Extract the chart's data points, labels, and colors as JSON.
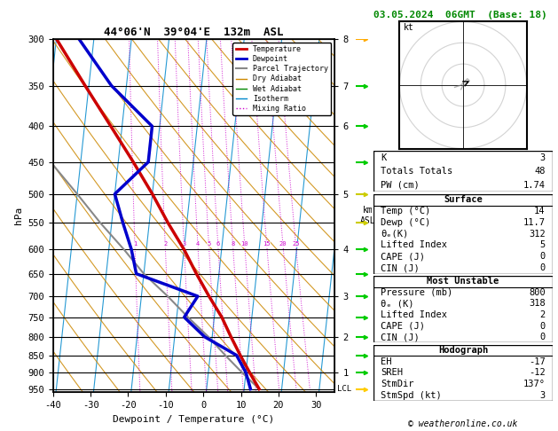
{
  "title_left": "44°06'N  39°04'E  132m  ASL",
  "title_right": "03.05.2024  06GMT  (Base: 18)",
  "xlabel": "Dewpoint / Temperature (°C)",
  "pressure_ticks": [
    300,
    350,
    400,
    450,
    500,
    550,
    600,
    650,
    700,
    750,
    800,
    850,
    900,
    950
  ],
  "xlim": [
    -40,
    35
  ],
  "p_min": 300,
  "p_max": 960,
  "km_ticks": [
    1,
    2,
    3,
    4,
    5,
    6,
    7,
    8
  ],
  "km_pressures": [
    900,
    800,
    700,
    600,
    500,
    400,
    350,
    300
  ],
  "mix_ratio_values": [
    1,
    2,
    3,
    4,
    5,
    6,
    8,
    10,
    15,
    20,
    25
  ],
  "mix_label_pressure": 590,
  "skew_slope": 20.0,
  "p0_skew": 1050.0,
  "temp_profile": {
    "pressure": [
      950,
      900,
      850,
      800,
      750,
      700,
      650,
      600,
      550,
      500,
      450,
      400,
      350,
      300
    ],
    "temp": [
      14,
      11,
      8,
      5,
      2,
      -2,
      -6,
      -10,
      -15,
      -20,
      -26,
      -33,
      -41,
      -50
    ]
  },
  "dewp_profile": {
    "pressure": [
      950,
      900,
      850,
      800,
      750,
      700,
      650,
      600,
      550,
      500,
      450,
      400,
      350,
      300
    ],
    "temp": [
      11.7,
      10,
      7,
      -2,
      -8,
      -5,
      -22,
      -24,
      -27,
      -30,
      -22,
      -22,
      -34,
      -44
    ]
  },
  "parcel_profile": {
    "pressure": [
      950,
      900,
      850,
      800,
      750,
      700,
      650,
      600,
      550,
      500,
      450,
      400,
      350,
      300
    ],
    "temp": [
      14,
      9,
      4,
      -1,
      -7,
      -13,
      -20,
      -26,
      -33,
      -40,
      -48,
      -56,
      -65,
      -75
    ]
  },
  "lcl_pressure": 950,
  "colors": {
    "temperature": "#cc0000",
    "dewpoint": "#0000cc",
    "parcel": "#888888",
    "dry_adiabat": "#cc8800",
    "wet_adiabat": "#008800",
    "isotherm": "#0088cc",
    "mixing_ratio": "#cc00cc"
  },
  "isotherm_temps": [
    -60,
    -50,
    -40,
    -30,
    -20,
    -10,
    0,
    10,
    20,
    30,
    40,
    50
  ],
  "dry_adiabat_thetas": [
    -40,
    -30,
    -20,
    -10,
    0,
    10,
    20,
    30,
    40,
    50,
    60,
    70,
    80,
    90,
    100,
    110,
    120,
    130,
    140,
    150,
    160,
    170,
    180,
    190
  ],
  "wet_adiabat_starts": [
    -30,
    -25,
    -20,
    -15,
    -10,
    -5,
    0,
    5,
    10,
    15,
    20,
    25,
    30
  ],
  "stats": {
    "K": "3",
    "Totals_Totals": "48",
    "PW_cm": "1.74",
    "Surface_Temp": "14",
    "Surface_Dewp": "11.7",
    "Surface_theta_e": "312",
    "Surface_Lifted_Index": "5",
    "Surface_CAPE": "0",
    "Surface_CIN": "0",
    "MU_Pressure": "800",
    "MU_theta_e": "318",
    "MU_Lifted_Index": "2",
    "MU_CAPE": "0",
    "MU_CIN": "0",
    "EH": "-17",
    "SREH": "-12",
    "StmDir": "137°",
    "StmSpd": "3"
  },
  "copyright": "© weatheronline.co.uk",
  "wind_barb_pressures": [
    300,
    350,
    400,
    450,
    500,
    550,
    600,
    650,
    700,
    750,
    800,
    850,
    900,
    950
  ],
  "wind_barb_colors": [
    "#ffaa00",
    "#00cc00",
    "#00cc00",
    "#00cc00",
    "#cccc00",
    "#cccc00",
    "#00cc00",
    "#00cc00",
    "#00cc00",
    "#00cc00",
    "#00cc00",
    "#00cc00",
    "#00cc00",
    "#ffcc00"
  ],
  "wind_barb_lengths": [
    3,
    2,
    2,
    2,
    2,
    2,
    2,
    2,
    2,
    2,
    2,
    2,
    2,
    2
  ]
}
